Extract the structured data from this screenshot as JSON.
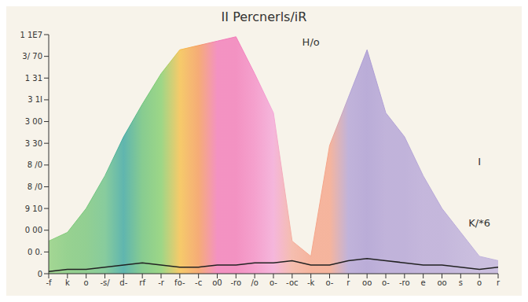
{
  "chart_data": {
    "type": "area",
    "title": "II Percnerls/iR",
    "categories": [
      "-f",
      "k",
      "o",
      "-s/",
      "d-",
      "rf",
      "-r",
      "fo-",
      "-c",
      "o0",
      "-ro",
      "/o",
      "o-",
      "-oc",
      "-k",
      "o-",
      "r",
      "oo",
      "o-",
      "-ro",
      "e",
      "oo",
      "s",
      "o",
      "r"
    ],
    "series": [
      {
        "type": "area",
        "colors": [
          "#8fcf7e",
          "#7fc97a",
          "#79c67c",
          "#6cc28a",
          "#3aa6a0",
          "#6cc27a",
          "#86cf6e",
          "#f5c04a",
          "#f59a5a",
          "#f27ab8",
          "#f27ab8",
          "#f48cc6",
          "#f4a7d8",
          "#f4b0a0",
          "#f5a58a",
          "#f5a58a",
          "#b3a3d6",
          "#ab9bd3",
          "#b3a3d6",
          "#b3a3d6",
          "#b8a8d8",
          "#b8a8d8",
          "#bcaeda",
          "#c0b2dc",
          "#c0b2dc"
        ],
        "values": [
          1.5,
          1.9,
          3.0,
          4.5,
          6.3,
          7.8,
          9.2,
          10.3,
          10.5,
          10.7,
          10.9,
          9.2,
          7.4,
          1.5,
          0.8,
          5.9,
          8.1,
          10.3,
          7.4,
          6.3,
          4.5,
          3.0,
          1.9,
          0.8,
          0.6
        ]
      },
      {
        "type": "line",
        "color": "#222222",
        "values": [
          0.1,
          0.2,
          0.2,
          0.3,
          0.4,
          0.5,
          0.4,
          0.3,
          0.3,
          0.4,
          0.4,
          0.5,
          0.5,
          0.6,
          0.4,
          0.4,
          0.6,
          0.7,
          0.6,
          0.5,
          0.4,
          0.4,
          0.3,
          0.2,
          0.3
        ]
      }
    ],
    "ylim": [
      0,
      11
    ],
    "yticks": [
      0,
      {
        "value": 1,
        "label": "0 0."
      },
      {
        "value": 2,
        "label": "0 00"
      },
      {
        "value": 3,
        "label": "9 10"
      },
      {
        "value": 4,
        "label": "8 /0"
      },
      {
        "value": 5,
        "label": "8 /0"
      },
      {
        "value": 6,
        "label": "3 30"
      },
      {
        "value": 7,
        "label": "3 00"
      },
      {
        "value": 8,
        "label": "3 1I"
      },
      {
        "value": 9,
        "label": "1 31"
      },
      {
        "value": 10,
        "label": "3/ 70"
      },
      {
        "value": 11,
        "label": "1 1E7"
      }
    ],
    "grid": false,
    "annotations": [
      {
        "text": "H/o",
        "x": 14,
        "y": 10.3
      },
      {
        "text": "I",
        "x": 23,
        "y": 4.8
      },
      {
        "text": "K/*6",
        "x": 23,
        "y": 2.0
      }
    ]
  }
}
